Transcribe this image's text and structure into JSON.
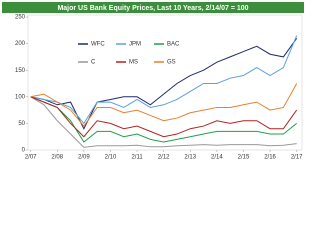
{
  "chart_data": {
    "type": "line",
    "title": "Major US Bank Equity Prices, Last 10 Years, 2/14/07 = 100",
    "x": [
      2007.1,
      2007.6,
      2008.1,
      2008.6,
      2009.1,
      2009.6,
      2010.1,
      2010.6,
      2011.1,
      2011.6,
      2012.1,
      2012.6,
      2013.1,
      2013.6,
      2014.1,
      2014.6,
      2015.1,
      2015.6,
      2016.1,
      2016.6,
      2017.1
    ],
    "series": [
      {
        "name": "WFC",
        "color": "#1f2a6b",
        "values": [
          100,
          95,
          85,
          90,
          40,
          90,
          95,
          100,
          100,
          85,
          105,
          125,
          140,
          150,
          165,
          175,
          185,
          195,
          180,
          175,
          210
        ]
      },
      {
        "name": "JPM",
        "color": "#5aa0e0",
        "values": [
          100,
          95,
          90,
          80,
          50,
          90,
          90,
          80,
          95,
          80,
          85,
          95,
          110,
          125,
          125,
          135,
          140,
          155,
          140,
          155,
          215
        ]
      },
      {
        "name": "BAC",
        "color": "#1aa34a",
        "values": [
          100,
          90,
          80,
          55,
          15,
          35,
          35,
          25,
          30,
          20,
          15,
          20,
          25,
          30,
          35,
          35,
          35,
          35,
          30,
          30,
          50
        ]
      },
      {
        "name": "C",
        "color": "#999999",
        "values": [
          100,
          85,
          55,
          30,
          5,
          8,
          8,
          8,
          9,
          6,
          6,
          8,
          9,
          10,
          9,
          10,
          10,
          10,
          8,
          9,
          12
        ]
      },
      {
        "name": "MS",
        "color": "#b22222",
        "values": [
          100,
          90,
          80,
          50,
          25,
          55,
          50,
          40,
          45,
          35,
          25,
          30,
          40,
          45,
          55,
          50,
          55,
          55,
          40,
          40,
          75
        ]
      },
      {
        "name": "GS",
        "color": "#e8802e",
        "values": [
          100,
          105,
          90,
          75,
          45,
          80,
          80,
          70,
          75,
          65,
          55,
          60,
          70,
          75,
          80,
          80,
          85,
          90,
          75,
          80,
          125
        ]
      }
    ],
    "xlim": [
      2007.0,
      2017.3
    ],
    "xticks": [
      {
        "value": 2007.1,
        "label": "2/07"
      },
      {
        "value": 2008.1,
        "label": "2/08"
      },
      {
        "value": 2009.1,
        "label": "2/09"
      },
      {
        "value": 2010.1,
        "label": "2/10"
      },
      {
        "value": 2011.1,
        "label": "2/11"
      },
      {
        "value": 2012.1,
        "label": "2/12"
      },
      {
        "value": 2013.1,
        "label": "2/13"
      },
      {
        "value": 2014.1,
        "label": "2/14"
      },
      {
        "value": 2015.1,
        "label": "2/15"
      },
      {
        "value": 2016.1,
        "label": "2/16"
      },
      {
        "value": 2017.1,
        "label": "2/17"
      }
    ],
    "ylim": [
      0,
      250
    ],
    "yticks": [
      0,
      50,
      100,
      150,
      200,
      250
    ],
    "legend": "upper left"
  }
}
